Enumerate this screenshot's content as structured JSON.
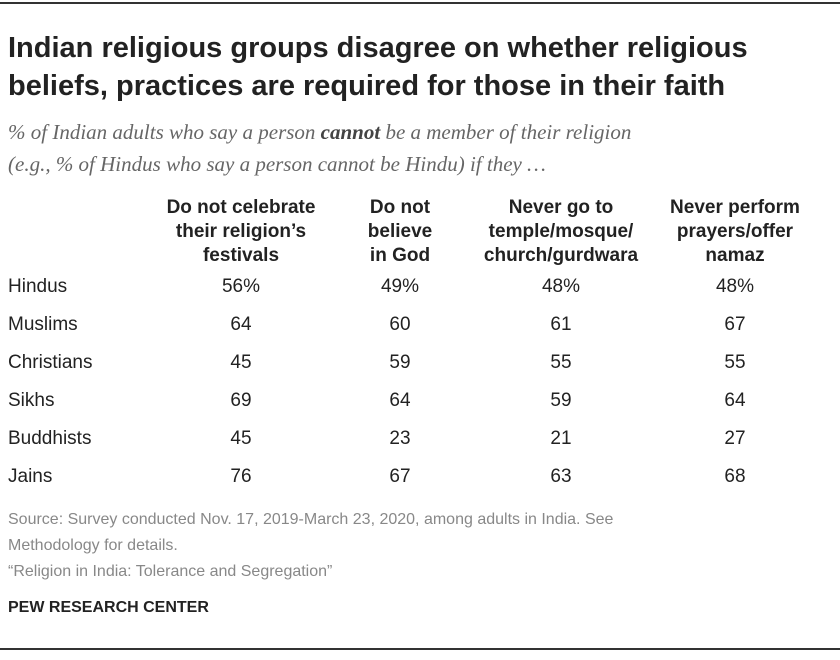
{
  "header": {
    "title": [
      "Indian religious groups disagree on whether religious",
      "beliefs, practices are required for those in their faith"
    ],
    "subtitle": [
      [
        "% of Indian adults who say a person ",
        "cannot",
        " be a member of their religion"
      ],
      [
        "(e.g., % of Hindus who say a person cannot be Hindu) if they …"
      ]
    ]
  },
  "table": {
    "columns": [
      [
        "Do not celebrate",
        "their religion’s",
        "festivals"
      ],
      [
        "Do not",
        "believe",
        "in God"
      ],
      [
        "Never go to",
        "temple/mosque/",
        "church/gurdwara"
      ],
      [
        "Never perform",
        "prayers/offer",
        "namaz"
      ]
    ],
    "rows": [
      [
        "Hindus",
        "56%",
        "49%",
        "48%",
        "48%"
      ],
      [
        "Muslims",
        "64",
        "60",
        "61",
        "67"
      ],
      [
        "Christians",
        "45",
        "59",
        "55",
        "55"
      ],
      [
        "Sikhs",
        "69",
        "64",
        "59",
        "64"
      ],
      [
        "Buddhists",
        "45",
        "23",
        "21",
        "27"
      ],
      [
        "Jains",
        "76",
        "67",
        "63",
        "68"
      ]
    ]
  },
  "footer": {
    "source": [
      "Source: Survey conducted Nov. 17, 2019-March 23, 2020, among adults in India. See",
      "Methodology for details."
    ],
    "report": "“Religion in India: Tolerance and Segregation”",
    "brand": "PEW RESEARCH CENTER"
  }
}
